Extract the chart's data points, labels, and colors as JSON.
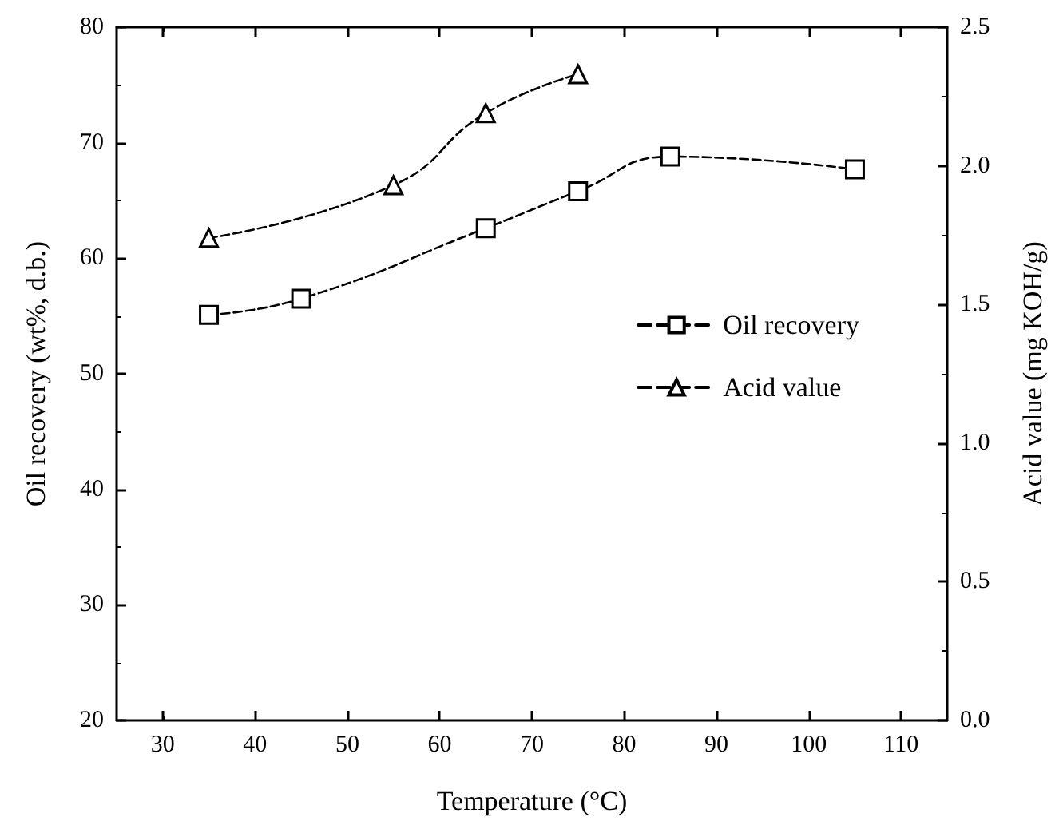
{
  "chart_data": {
    "type": "line",
    "xlabel": "Temperature (°C)",
    "ylabel": "Oil recovery (wt%, d.b.)",
    "y2label": "Acid value (mg KOH/g)",
    "x": [
      35,
      45,
      65,
      75,
      85,
      105
    ],
    "series": [
      {
        "name": "Oil recovery",
        "color": "#000000",
        "marker": "square",
        "values": [
          55.1,
          56.5,
          62.6,
          65.8,
          68.8,
          67.7
        ]
      },
      {
        "name": "Acid value",
        "color": "#000000",
        "marker": "triangle",
        "axis": "y2",
        "x": [
          35,
          55,
          65,
          75
        ],
        "values": [
          1.74,
          1.93,
          2.19,
          2.33
        ]
      }
    ],
    "xlim": [
      25,
      115
    ],
    "xticks": [
      30,
      40,
      50,
      60,
      70,
      80,
      90,
      100,
      110
    ],
    "ylim": [
      20,
      80
    ],
    "yticks": [
      20,
      30,
      40,
      50,
      60,
      70,
      80
    ],
    "y2lim": [
      0,
      2.5
    ],
    "y2ticks": [
      {
        "value": 0,
        "label": "0.0"
      },
      {
        "value": 0.5,
        "label": "0.5"
      },
      {
        "value": 1,
        "label": "1.0"
      },
      {
        "value": 1.5,
        "label": "1.5"
      },
      {
        "value": 2,
        "label": "2.0"
      },
      {
        "value": 2.5,
        "label": "2.5"
      }
    ],
    "line_style": "dashed",
    "legend": "right",
    "grid": false
  }
}
